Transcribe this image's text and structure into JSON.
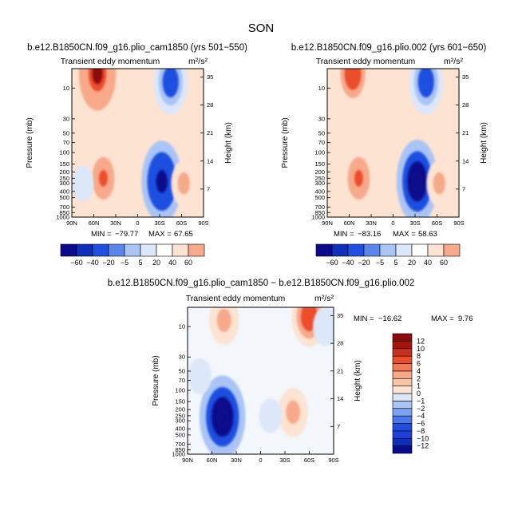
{
  "page": {
    "title": "SON",
    "colors": {
      "blue_dark": "#0a0a8c",
      "blue": "#1f4fe0",
      "blue_light": "#a9c4f5",
      "blue_pale": "#dce7fa",
      "red_pale": "#fde3d2",
      "red_light": "#f7a98a",
      "red": "#ec4e2c",
      "red_dark": "#8c0a0a"
    }
  },
  "chart_data": [
    {
      "type": "contour",
      "panel": "left",
      "title": "b.e12.B1850CN.f09_g16.plio_cam1850 (yrs 501−550)",
      "variable": "Transient eddy momentum",
      "units": "m²/s²",
      "ylabel": "Pressure (mb)",
      "y2label": "Height (km)",
      "x_ticks": [
        "90N",
        "60N",
        "30N",
        "0",
        "30S",
        "60S",
        "90S"
      ],
      "y_ticks": [
        "10",
        "30",
        "50",
        "70",
        "100",
        "150",
        "200",
        "250",
        "300",
        "400",
        "500",
        "700",
        "850",
        "1000"
      ],
      "y2_ticks": [
        "35",
        "28",
        "21",
        "14",
        "7"
      ],
      "min_label": "MIN =",
      "min": "−79.77",
      "max_label": "MAX =",
      "max": "67.65",
      "levels": [
        "−60",
        "−40",
        "−20",
        "−5",
        "5",
        "20",
        "40",
        "60"
      ],
      "features": [
        {
          "lat": 47,
          "plev": 250,
          "value": 45
        },
        {
          "lat": -33,
          "plev": 280,
          "value": -79.77
        },
        {
          "lat": 55,
          "plev": 6,
          "value": 67.65
        },
        {
          "lat": -45,
          "plev": 8,
          "value": -55
        },
        {
          "lat": -63,
          "plev": 300,
          "value": 25
        },
        {
          "lat": 75,
          "plev": 300,
          "value": -10
        }
      ]
    },
    {
      "type": "contour",
      "panel": "right",
      "title": "b.e12.B1850CN.f09_g16.plio.002 (yrs 601−650)",
      "variable": "Transient eddy momentum",
      "units": "m²/s²",
      "ylabel": "Pressure (mb)",
      "y2label": "Height (km)",
      "x_ticks": [
        "90N",
        "60N",
        "30N",
        "0",
        "30S",
        "60S",
        "90S"
      ],
      "y_ticks": [
        "10",
        "30",
        "50",
        "70",
        "100",
        "150",
        "200",
        "250",
        "300",
        "400",
        "500",
        "700",
        "850",
        "1000"
      ],
      "y2_ticks": [
        "35",
        "28",
        "21",
        "14",
        "7"
      ],
      "min_label": "MIN =",
      "min": "−83.16",
      "max_label": "MAX =",
      "max": "58.63",
      "levels": [
        "−60",
        "−40",
        "−20",
        "−5",
        "5",
        "20",
        "40",
        "60"
      ],
      "features": [
        {
          "lat": 47,
          "plev": 250,
          "value": 45
        },
        {
          "lat": -33,
          "plev": 280,
          "value": -83.16
        },
        {
          "lat": 55,
          "plev": 6,
          "value": 58.63
        },
        {
          "lat": -45,
          "plev": 8,
          "value": -55
        },
        {
          "lat": -63,
          "plev": 300,
          "value": 25
        }
      ]
    },
    {
      "type": "contour",
      "panel": "difference",
      "title": "b.e12.B1850CN.f09_g16.plio_cam1850 − b.e12.B1850CN.f09_g16.plio.002",
      "variable": "Transient eddy momentum",
      "units": "m²/s²",
      "ylabel": "Pressure (mb)",
      "y2label": "Height (km)",
      "x_ticks": [
        "90N",
        "60N",
        "30N",
        "0",
        "30S",
        "60S",
        "90S"
      ],
      "y_ticks": [
        "10",
        "30",
        "50",
        "70",
        "100",
        "150",
        "200",
        "250",
        "300",
        "400",
        "500",
        "700",
        "850",
        "1000"
      ],
      "y2_ticks": [
        "35",
        "28",
        "21",
        "14",
        "7"
      ],
      "min_label": "MIN =",
      "min": "−16.62",
      "max_label": "MAX =",
      "max": "9.76",
      "levels": [
        "−12",
        "−10",
        "−8",
        "−6",
        "−4",
        "−2",
        "−1",
        "0",
        "1",
        "2",
        "4",
        "6",
        "8",
        "10",
        "12"
      ],
      "features": [
        {
          "lat": 47,
          "plev": 260,
          "value": -16.62
        },
        {
          "lat": -60,
          "plev": 7,
          "value": 9.76
        },
        {
          "lat": 45,
          "plev": 8,
          "value": 6
        },
        {
          "lat": -40,
          "plev": 220,
          "value": 6
        },
        {
          "lat": 75,
          "plev": 60,
          "value": -2
        },
        {
          "lat": -80,
          "plev": 10,
          "value": -3
        },
        {
          "lat": -12,
          "plev": 250,
          "value": -1.5
        }
      ]
    }
  ]
}
